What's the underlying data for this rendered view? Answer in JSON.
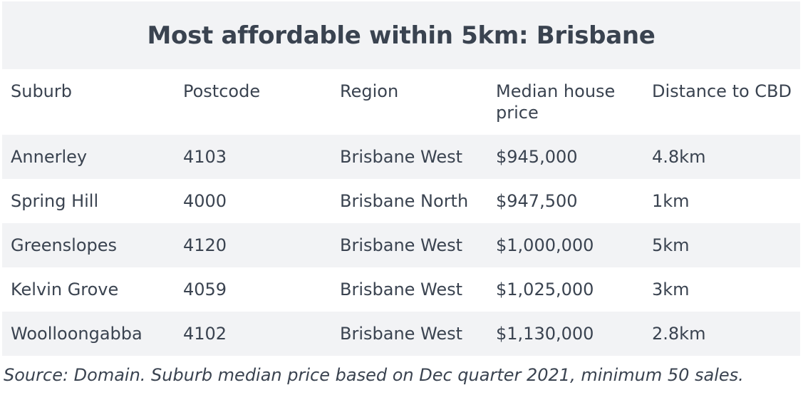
{
  "chart_data": {
    "type": "table",
    "title": "Most affordable within 5km: Brisbane",
    "columns": [
      "Suburb",
      "Postcode",
      "Region",
      "Median house price",
      "Distance to CBD"
    ],
    "rows": [
      [
        "Annerley",
        "4103",
        "Brisbane West",
        "$945,000",
        "4.8km"
      ],
      [
        "Spring Hill",
        "4000",
        "Brisbane North",
        "$947,500",
        "1km"
      ],
      [
        "Greenslopes",
        "4120",
        "Brisbane West",
        "$1,000,000",
        "5km"
      ],
      [
        "Kelvin Grove",
        "4059",
        "Brisbane West",
        "$1,025,000",
        "3km"
      ],
      [
        "Woolloongabba",
        "4102",
        "Brisbane West",
        "$1,130,000",
        "2.8km"
      ]
    ],
    "source": "Source: Domain. Suburb median price based on Dec quarter 2021, minimum 50 sales."
  },
  "colors": {
    "text": "#3a4350",
    "band": "#f2f3f5",
    "background": "#ffffff"
  }
}
